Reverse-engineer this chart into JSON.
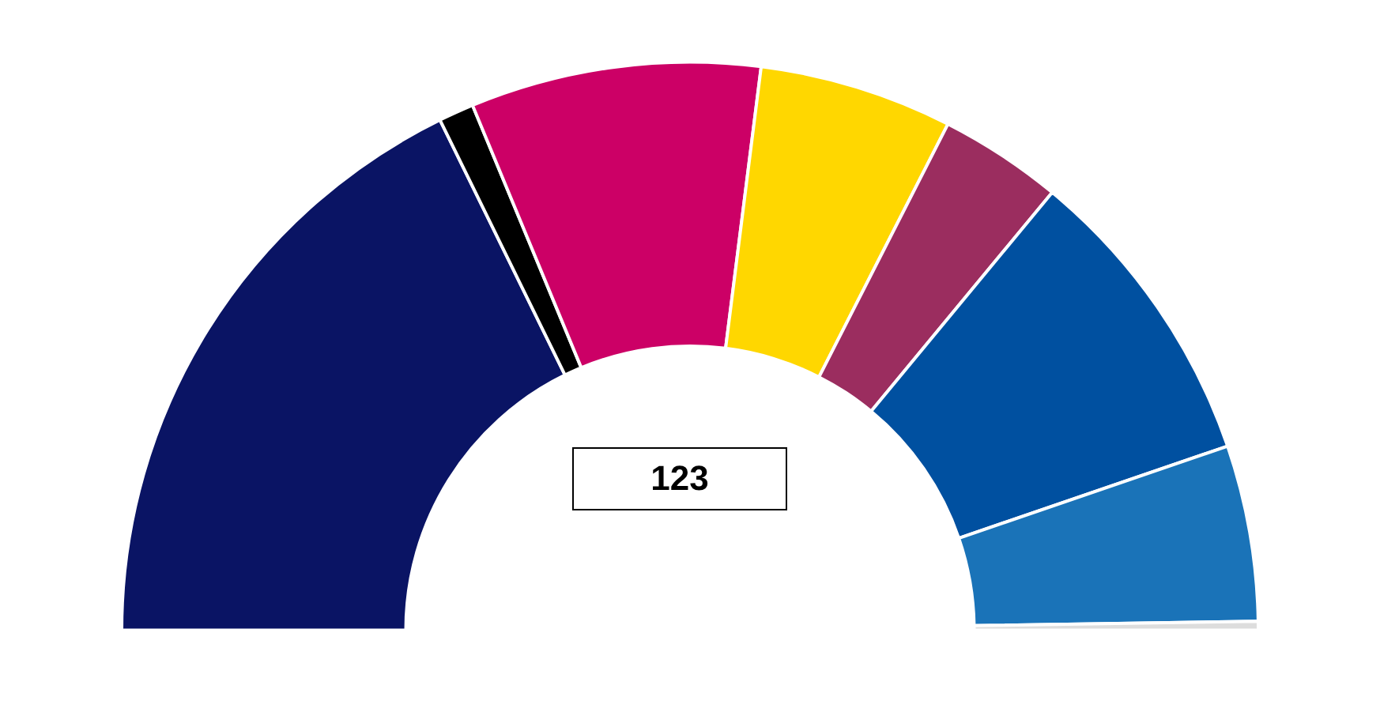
{
  "chart_data": {
    "type": "donut",
    "categories": [
      null,
      null,
      null,
      null,
      null,
      null,
      null,
      null
    ],
    "values": [
      35.5,
      2,
      16.5,
      11,
      7,
      17.5,
      10,
      0.5
    ],
    "colors": [
      "#0a1464",
      "#000000",
      "#cc0066",
      "#ffd700",
      "#9b2d5f",
      "#0050a0",
      "#1a73b8",
      "#dddddd"
    ],
    "annotations": [
      "123"
    ],
    "legend": false
  }
}
